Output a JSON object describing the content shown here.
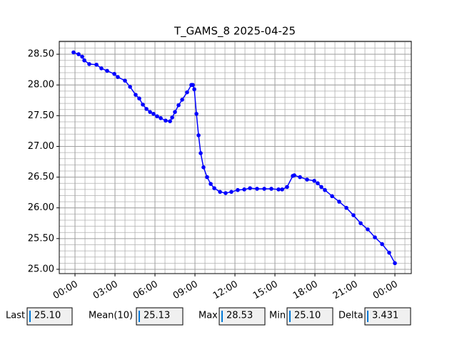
{
  "chart_data": {
    "type": "line",
    "title": "T_GAMS_8 2025-04-25",
    "x": [
      -0.11,
      0.27,
      0.54,
      0.7,
      1.07,
      1.61,
      1.98,
      2.41,
      2.95,
      3.21,
      3.75,
      4.13,
      4.55,
      4.82,
      5.09,
      5.36,
      5.63,
      5.89,
      6.16,
      6.43,
      6.8,
      7.13,
      7.29,
      7.5,
      7.77,
      8.04,
      8.41,
      8.73,
      8.84,
      8.95,
      9.11,
      9.27,
      9.43,
      9.64,
      9.91,
      10.18,
      10.45,
      10.88,
      11.3,
      11.73,
      12.21,
      12.7,
      13.13,
      13.66,
      14.2,
      14.73,
      15.27,
      15.54,
      15.91,
      16.34,
      16.45,
      16.88,
      17.41,
      17.95,
      18.21,
      18.48,
      18.75,
      19.29,
      19.82,
      20.36,
      20.89,
      21.43,
      21.96,
      22.5,
      23.04,
      23.57,
      24.0
    ],
    "series": [
      {
        "name": "T_GAMS_8",
        "color": "#0000ff",
        "values": [
          28.53,
          28.5,
          28.46,
          28.4,
          28.34,
          28.33,
          28.27,
          28.23,
          28.18,
          28.13,
          28.07,
          27.97,
          27.84,
          27.78,
          27.68,
          27.61,
          27.56,
          27.53,
          27.49,
          27.46,
          27.42,
          27.41,
          27.47,
          27.56,
          27.67,
          27.76,
          27.88,
          28.0,
          28.0,
          27.93,
          27.53,
          27.18,
          26.89,
          26.66,
          26.5,
          26.39,
          26.32,
          26.26,
          26.24,
          26.26,
          26.29,
          26.3,
          26.32,
          26.31,
          26.31,
          26.31,
          26.3,
          26.3,
          26.34,
          26.52,
          26.53,
          26.5,
          26.46,
          26.44,
          26.4,
          26.34,
          26.29,
          26.19,
          26.1,
          26.0,
          25.88,
          25.75,
          25.65,
          25.52,
          25.41,
          25.27,
          25.1
        ]
      }
    ],
    "xlim": [
      -1.18,
      25.23
    ],
    "xticks": [
      {
        "value": 0,
        "label": "00:00"
      },
      {
        "value": 3,
        "label": "03:00"
      },
      {
        "value": 6,
        "label": "06:00"
      },
      {
        "value": 9,
        "label": "09:00"
      },
      {
        "value": 12,
        "label": "12:00"
      },
      {
        "value": 15,
        "label": "15:00"
      },
      {
        "value": 18,
        "label": "18:00"
      },
      {
        "value": 21,
        "label": "21:00"
      },
      {
        "value": 24,
        "label": "00:00"
      }
    ],
    "ylim": [
      24.93,
      28.71
    ],
    "yticks": [
      {
        "value": 25,
        "label": "25.00"
      },
      {
        "value": 25.5,
        "label": "25.50"
      },
      {
        "value": 26,
        "label": "26.00"
      },
      {
        "value": 26.5,
        "label": "26.50"
      },
      {
        "value": 27,
        "label": "27.00"
      },
      {
        "value": 27.5,
        "label": "27.50"
      },
      {
        "value": 28,
        "label": "28.00"
      },
      {
        "value": 28.5,
        "label": "28.50"
      }
    ],
    "grid": true
  },
  "fields": [
    {
      "label": "Last",
      "value": "25.10"
    },
    {
      "label": "Mean(10)",
      "value": "25.13"
    },
    {
      "label": "Max",
      "value": "28.53"
    },
    {
      "label": "Min",
      "value": "25.10"
    },
    {
      "label": "Delta",
      "value": "3.431"
    }
  ]
}
